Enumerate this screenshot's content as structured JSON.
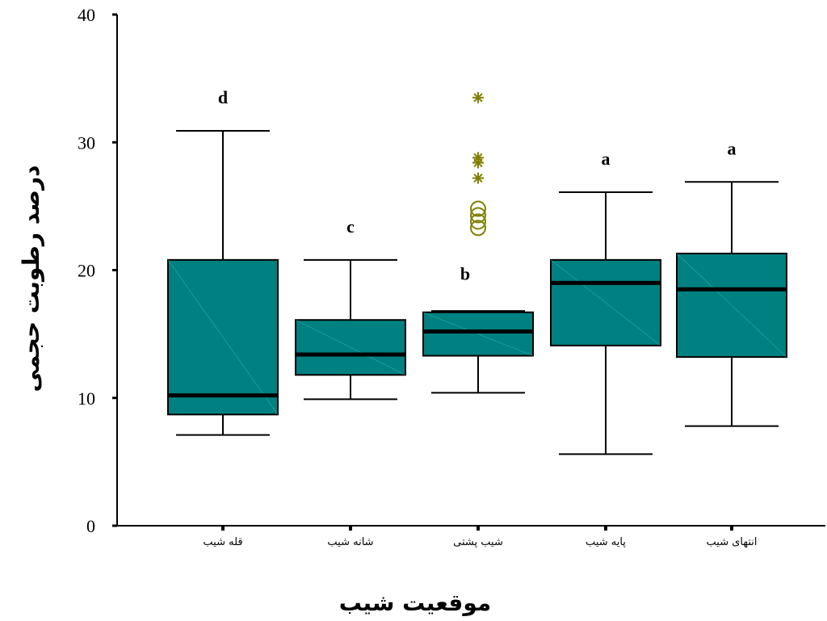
{
  "chart_data": {
    "type": "boxplot",
    "xlabel": "موقعیت شیب",
    "ylabel": "درصد رطوبت حجمی",
    "ylim": [
      0,
      40
    ],
    "yticks": [
      0,
      10,
      20,
      30,
      40
    ],
    "grid": false,
    "colors": {
      "box": "#008080",
      "outlier": "#808000"
    },
    "categories": [
      "قله شیب",
      "شانه شیب",
      "شیب پشتی",
      "پایه شیب",
      "انتهای شیب"
    ],
    "boxes": [
      {
        "category": "قله شیب",
        "min": 7.1,
        "q1": 8.7,
        "median": 10.2,
        "q3": 20.8,
        "max": 30.9,
        "group": "d",
        "outliers": [],
        "extremes": []
      },
      {
        "category": "شانه شیب",
        "min": 9.9,
        "q1": 11.8,
        "median": 13.4,
        "q3": 16.1,
        "max": 20.8,
        "group": "c",
        "outliers": [],
        "extremes": []
      },
      {
        "category": "شیب پشتی",
        "min": 10.4,
        "q1": 13.3,
        "median": 15.2,
        "q3": 16.7,
        "max": 16.8,
        "group": "b",
        "outliers": [
          23.3,
          23.8,
          24.3,
          24.8
        ],
        "extremes": [
          27.2,
          28.4,
          28.8,
          33.5
        ]
      },
      {
        "category": "پایه شیب",
        "min": 5.6,
        "q1": 14.1,
        "median": 19.0,
        "q3": 20.8,
        "max": 26.1,
        "group": "a",
        "outliers": [],
        "extremes": []
      },
      {
        "category": "انتهای شیب",
        "min": 7.8,
        "q1": 13.2,
        "median": 18.5,
        "q3": 21.3,
        "max": 26.9,
        "group": "a",
        "outliers": [],
        "extremes": []
      }
    ]
  }
}
